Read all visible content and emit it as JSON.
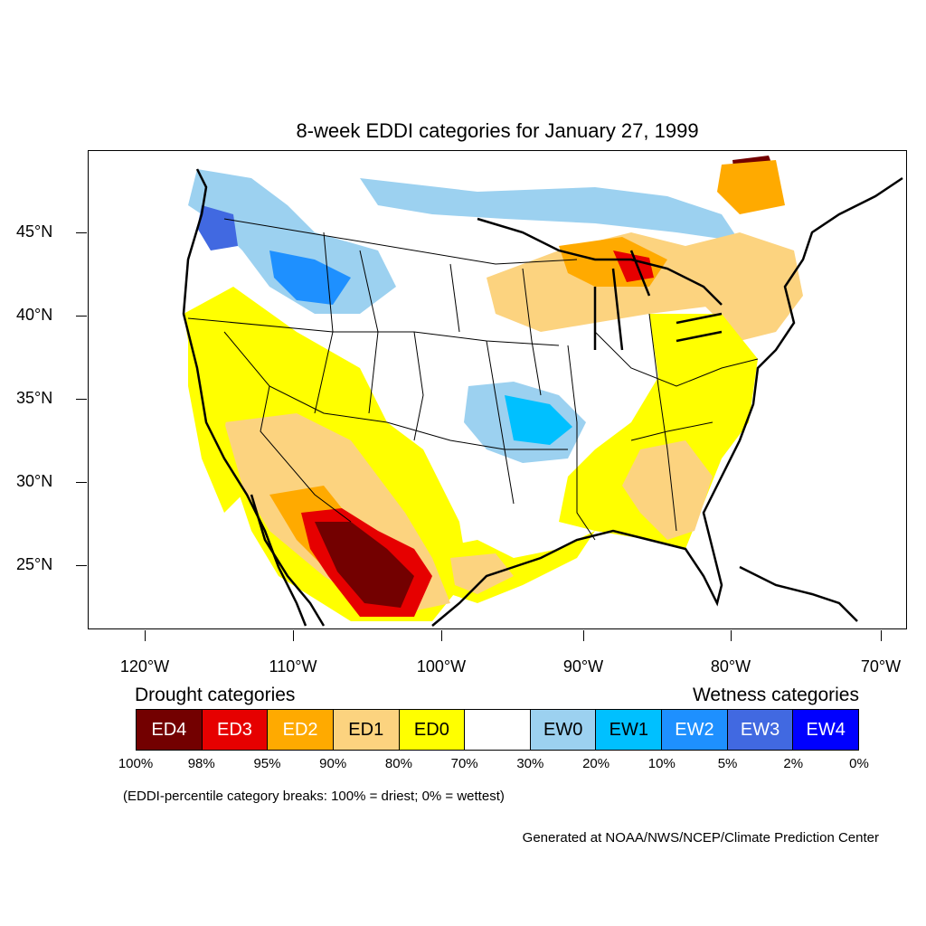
{
  "title": "8-week EDDI categories for January 27, 1999",
  "lat_labels": [
    "45°N",
    "40°N",
    "35°N",
    "30°N",
    "25°N"
  ],
  "lon_labels": [
    "120°W",
    "110°W",
    "100°W",
    "90°W",
    "80°W",
    "70°W"
  ],
  "legend": {
    "drought_heading": "Drought categories",
    "wetness_heading": "Wetness categories",
    "categories": [
      {
        "label": "ED4",
        "color": "#730000",
        "text_color": "#ffffff"
      },
      {
        "label": "ED3",
        "color": "#e60000",
        "text_color": "#ffffff"
      },
      {
        "label": "ED2",
        "color": "#ffaa00",
        "text_color": "#ffffff"
      },
      {
        "label": "ED1",
        "color": "#fcd37f",
        "text_color": "#000000"
      },
      {
        "label": "ED0",
        "color": "#ffff00",
        "text_color": "#000000"
      },
      {
        "label": "",
        "color": "#ffffff",
        "text_color": "#000000"
      },
      {
        "label": "EW0",
        "color": "#9cd1f0",
        "text_color": "#000000"
      },
      {
        "label": "EW1",
        "color": "#00c0ff",
        "text_color": "#000000"
      },
      {
        "label": "EW2",
        "color": "#1e90ff",
        "text_color": "#ffffff"
      },
      {
        "label": "EW3",
        "color": "#4169e1",
        "text_color": "#ffffff"
      },
      {
        "label": "EW4",
        "color": "#0000ff",
        "text_color": "#ffffff"
      }
    ],
    "percentiles": [
      "100%",
      "98%",
      "95%",
      "90%",
      "80%",
      "70%",
      "30%",
      "20%",
      "10%",
      "5%",
      "2%",
      "0%"
    ]
  },
  "note": "(EDDI-percentile category breaks: 100% = driest; 0% = wettest)",
  "credit": "Generated at NOAA/NWS/NCEP/Climate Prediction Center"
}
